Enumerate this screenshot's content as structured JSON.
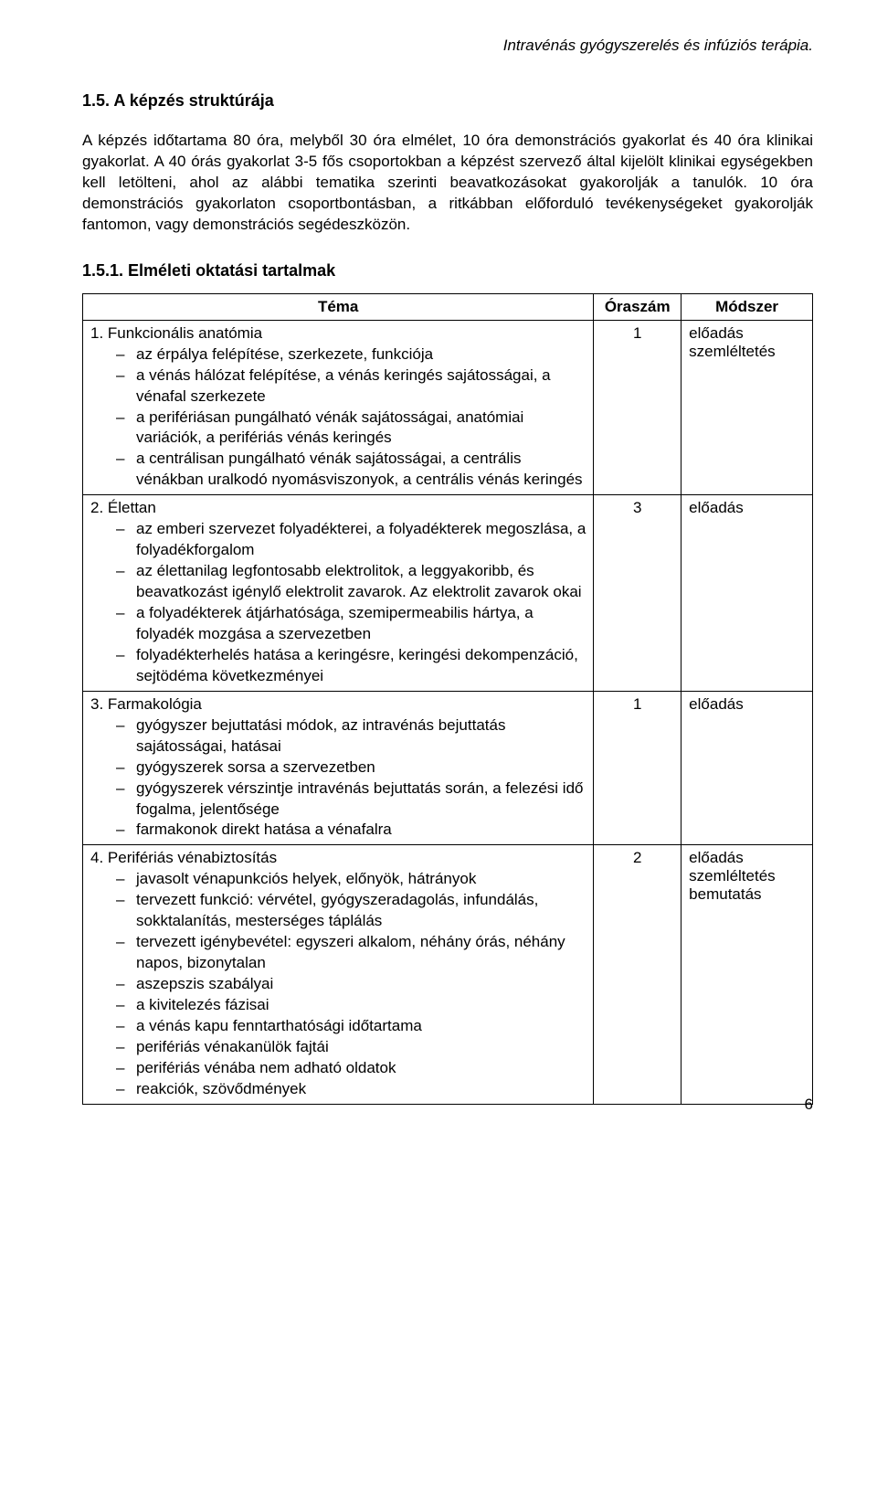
{
  "header": {
    "title": "Intravénás gyógyszerelés és infúziós terápia."
  },
  "section": {
    "heading": "1.5. A képzés struktúrája",
    "paragraph": "A képzés időtartama 80 óra, melyből 30 óra elmélet, 10 óra demonstrációs gyakorlat és 40 óra klinikai gyakorlat. A 40 órás gyakorlat 3-5 fős csoportokban a képzést szervező által kijelölt klinikai egységekben kell letölteni, ahol az alábbi tematika szerinti beavatkozásokat gyakorolják a tanulók. 10 óra demonstrációs gyakorlaton csoportbontásban, a ritkábban előforduló tevékenységeket gyakorolják fantomon, vagy demonstrációs segédeszközön."
  },
  "subheading": "1.5.1. Elméleti oktatási tartalmak",
  "table": {
    "headers": {
      "theme": "Téma",
      "hours": "Óraszám",
      "method": "Módszer"
    },
    "rows": [
      {
        "num": "1.",
        "title": "Funkcionális anatómia",
        "items": [
          "az érpálya felépítése, szerkezete, funkciója",
          "a vénás hálózat felépítése, a vénás keringés sajátosságai, a vénafal szerkezete",
          "a perifériásan pungálható vénák sajátosságai, anatómiai variációk, a perifériás vénás keringés",
          "a centrálisan pungálható vénák sajátosságai, a centrális vénákban uralkodó nyomásviszonyok, a centrális vénás keringés"
        ],
        "hours": "1",
        "method": "előadás\nszemléltetés"
      },
      {
        "num": "2.",
        "title": "Élettan",
        "items": [
          "az emberi szervezet folyadékterei, a folyadékterek megoszlása, a folyadékforgalom",
          "az élettanilag legfontosabb elektrolitok, a leggyakoribb, és beavatkozást igénylő elektrolit zavarok. Az elektrolit zavarok okai",
          "a folyadékterek átjárhatósága, szemipermeabilis hártya, a folyadék mozgása a szervezetben",
          "folyadékterhelés hatása a keringésre, keringési dekompenzáció, sejtödéma következményei"
        ],
        "hours": "3",
        "method": "előadás"
      },
      {
        "num": "3.",
        "title": "Farmakológia",
        "items": [
          "gyógyszer bejuttatási módok, az intravénás bejuttatás sajátosságai, hatásai",
          "gyógyszerek sorsa a szervezetben",
          "gyógyszerek vérszintje intravénás bejuttatás során, a felezési idő fogalma, jelentősége",
          "farmakonok direkt hatása a vénafalra"
        ],
        "hours": "1",
        "method": "előadás"
      },
      {
        "num": "4.",
        "title": "Perifériás vénabiztosítás",
        "items": [
          "javasolt vénapunkciós helyek, előnyök, hátrányok",
          "tervezett funkció: vérvétel, gyógyszeradagolás, infundálás, sokktalanítás, mesterséges táplálás",
          "tervezett igénybevétel: egyszeri alkalom, néhány órás, néhány napos, bizonytalan",
          "aszepszis szabályai",
          "a kivitelezés fázisai",
          "a vénás kapu fenntarthatósági időtartama",
          "perifériás vénakanülök fajtái",
          "perifériás vénába nem adható oldatok",
          "reakciók, szövődmények"
        ],
        "hours": "2",
        "method": "előadás\nszemléltetés\nbemutatás"
      }
    ]
  },
  "page_number": "6"
}
